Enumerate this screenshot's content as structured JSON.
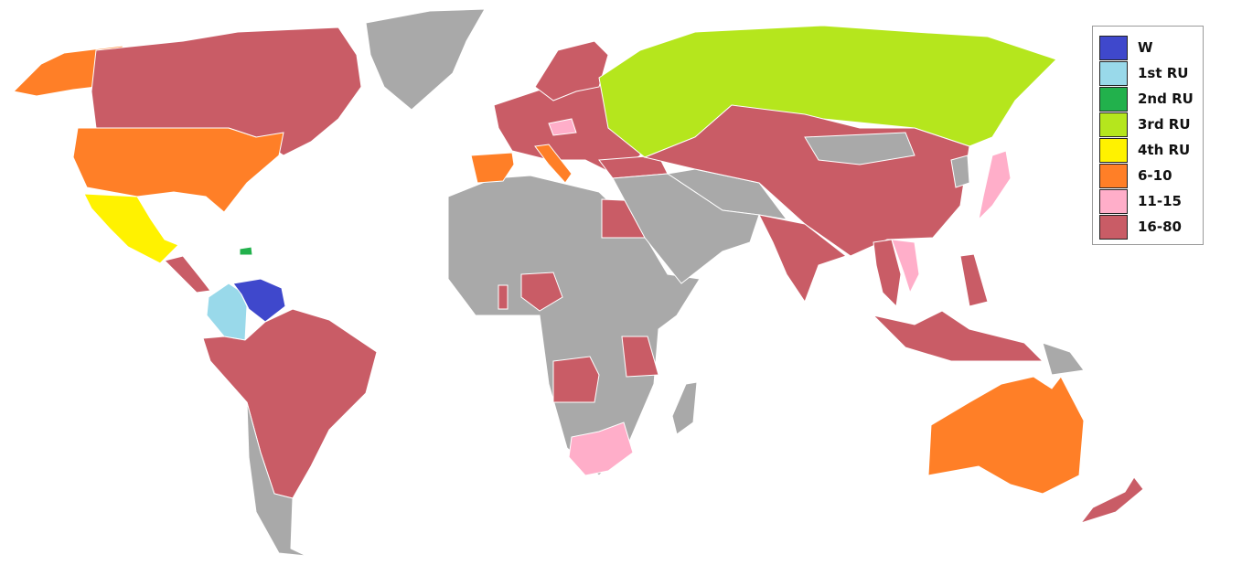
{
  "legend": [
    {
      "label": "W",
      "color": "#3f48cc"
    },
    {
      "label": "1st RU",
      "color": "#99d9ea"
    },
    {
      "label": "2nd RU",
      "color": "#22b14c"
    },
    {
      "label": "3rd RU",
      "color": "#b5e61d"
    },
    {
      "label": "4th RU",
      "color": "#fff200"
    },
    {
      "label": "6-10",
      "color": "#ff7f27"
    },
    {
      "label": "11-15",
      "color": "#ffaec9"
    },
    {
      "label": "16-80",
      "color": "#c95c66"
    }
  ],
  "no_data_color": "#a9a9a9",
  "regions": {
    "venezuela": "W",
    "colombia": "1st RU",
    "dominican-republic": "2nd RU",
    "russia": "3rd RU",
    "mexico": "4th RU",
    "usa": "6-10",
    "alaska": "6-10",
    "spain": "6-10",
    "italy": "6-10",
    "australia": "6-10",
    "japan": "11-15",
    "south-africa": "11-15",
    "vietnam": "11-15",
    "czech-republic": "11-15",
    "canada": "16-80",
    "brazil-and-south-america": "16-80",
    "europe": "16-80",
    "scandinavia": "16-80",
    "china-kazakhstan": "16-80",
    "india": "16-80",
    "egypt": "16-80",
    "nigeria": "16-80",
    "ghana": "16-80",
    "angola": "16-80",
    "tanzania": "16-80",
    "southeast-asia": "16-80",
    "indonesia": "16-80",
    "philippines": "16-80",
    "new-zealand": "16-80",
    "central-america": "16-80",
    "turkey": "16-80",
    "greenland": "none",
    "africa": "none",
    "middle-east": "none",
    "mongolia": "none",
    "chile-argentina": "none",
    "madagascar": "none",
    "papua-new-guinea": "none",
    "korea": "none",
    "central-asia": "none"
  }
}
